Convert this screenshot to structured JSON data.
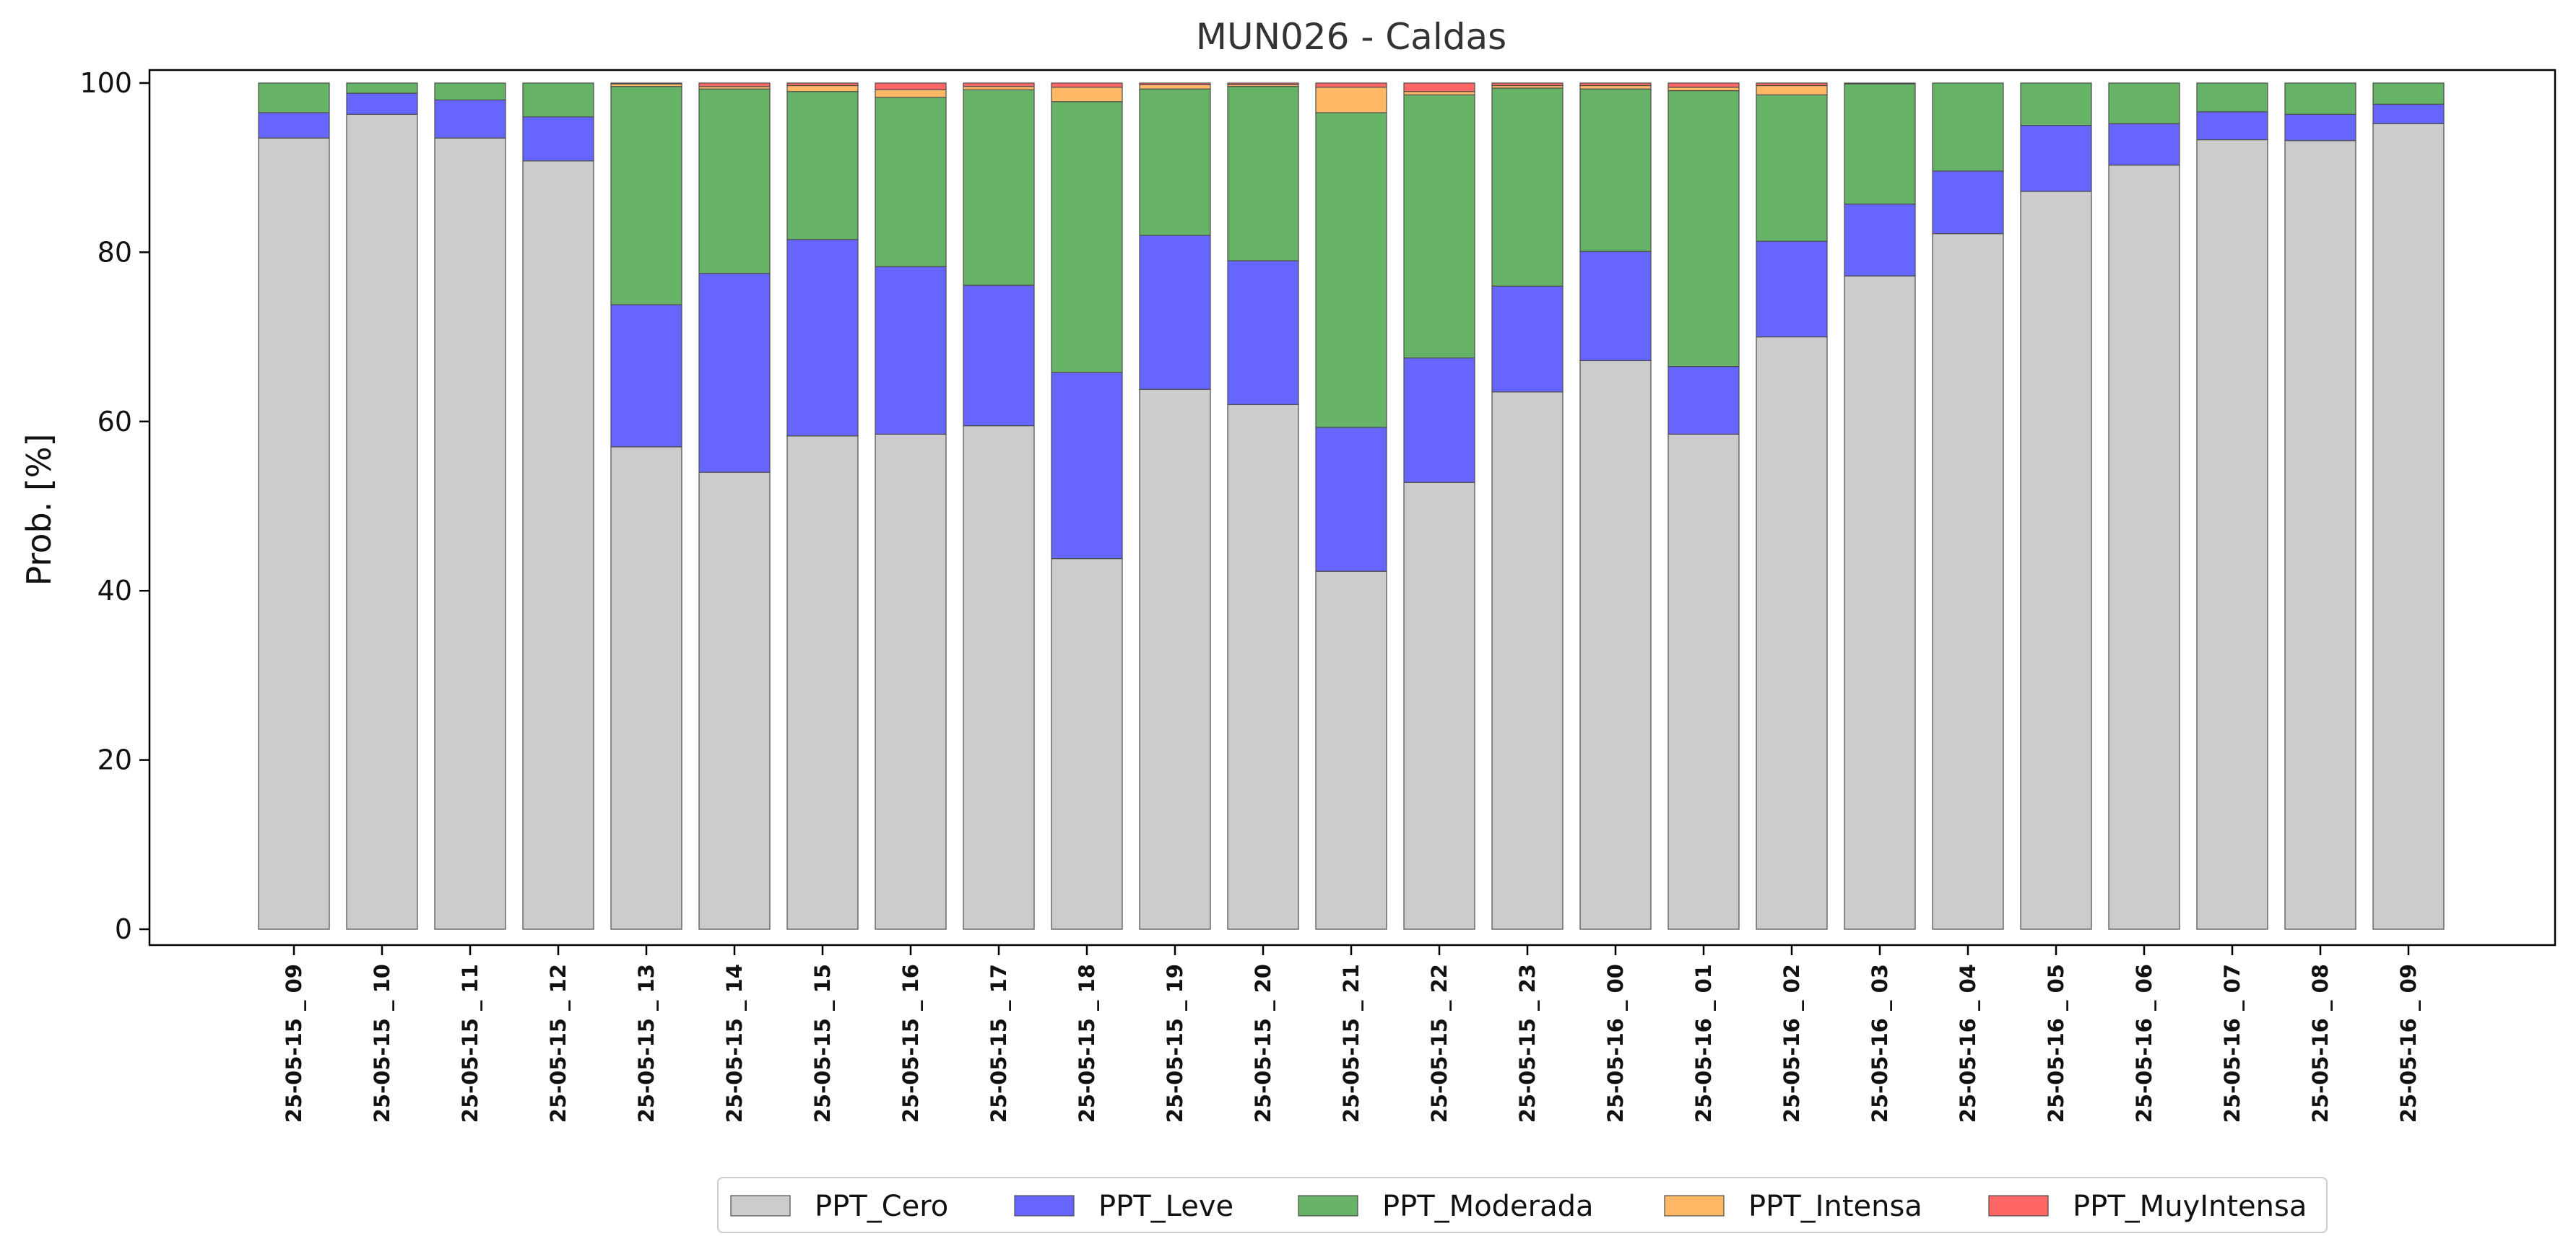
{
  "chart_data": {
    "type": "bar",
    "stacked": true,
    "title": "MUN026 - Caldas",
    "xlabel": "",
    "ylabel": "Prob. [%]",
    "ylim": [
      0,
      100
    ],
    "yticks": [
      0,
      20,
      40,
      60,
      80,
      100
    ],
    "grid": false,
    "legend_position": "bottom-center",
    "categories": [
      "25-05-15 _ 09",
      "25-05-15 _ 10",
      "25-05-15 _ 11",
      "25-05-15 _ 12",
      "25-05-15 _ 13",
      "25-05-15 _ 14",
      "25-05-15 _ 15",
      "25-05-15 _ 16",
      "25-05-15 _ 17",
      "25-05-15 _ 18",
      "25-05-15 _ 19",
      "25-05-15 _ 20",
      "25-05-15 _ 21",
      "25-05-15 _ 22",
      "25-05-15 _ 23",
      "25-05-16 _ 00",
      "25-05-16 _ 01",
      "25-05-16 _ 02",
      "25-05-16 _ 03",
      "25-05-16 _ 04",
      "25-05-16 _ 05",
      "25-05-16 _ 06",
      "25-05-16 _ 07",
      "25-05-16 _ 08",
      "25-05-16 _ 09"
    ],
    "series": [
      {
        "name": "PPT_Cero",
        "color": "#cccccc",
        "values": [
          93.5,
          96.3,
          93.5,
          90.8,
          57.0,
          54.0,
          58.3,
          58.5,
          59.5,
          43.8,
          63.8,
          62.0,
          42.3,
          52.8,
          63.5,
          67.2,
          58.5,
          70.0,
          77.2,
          82.2,
          87.2,
          90.3,
          93.3,
          93.2,
          95.2
        ]
      },
      {
        "name": "PPT_Leve",
        "color": "#6666ff",
        "values": [
          3.0,
          2.5,
          4.5,
          5.2,
          16.8,
          23.5,
          23.2,
          19.8,
          16.6,
          22.0,
          18.2,
          17.0,
          17.0,
          14.7,
          12.5,
          12.9,
          8.0,
          11.3,
          8.5,
          7.4,
          7.8,
          4.9,
          3.3,
          3.1,
          2.3
        ]
      },
      {
        "name": "PPT_Moderada",
        "color": "#66b266",
        "values": [
          3.5,
          1.2,
          2.0,
          4.0,
          25.8,
          21.8,
          17.5,
          20.0,
          23.1,
          32.0,
          17.3,
          20.6,
          37.2,
          31.1,
          23.4,
          19.2,
          32.6,
          17.3,
          14.2,
          10.4,
          5.0,
          4.8,
          3.4,
          3.7,
          2.5
        ]
      },
      {
        "name": "PPT_Intensa",
        "color": "#ffb966",
        "values": [
          0.0,
          0.0,
          0.0,
          0.0,
          0.3,
          0.3,
          0.7,
          0.9,
          0.4,
          1.7,
          0.5,
          0.2,
          3.0,
          0.4,
          0.3,
          0.4,
          0.4,
          1.1,
          0.0,
          0.0,
          0.0,
          0.0,
          0.0,
          0.0,
          0.0
        ]
      },
      {
        "name": "PPT_MuyIntensa",
        "color": "#ff6666",
        "values": [
          0.0,
          0.0,
          0.0,
          0.0,
          0.1,
          0.4,
          0.3,
          0.8,
          0.4,
          0.5,
          0.2,
          0.2,
          0.5,
          1.0,
          0.3,
          0.3,
          0.5,
          0.3,
          0.1,
          0.0,
          0.0,
          0.0,
          0.0,
          0.0,
          0.0
        ]
      }
    ]
  }
}
